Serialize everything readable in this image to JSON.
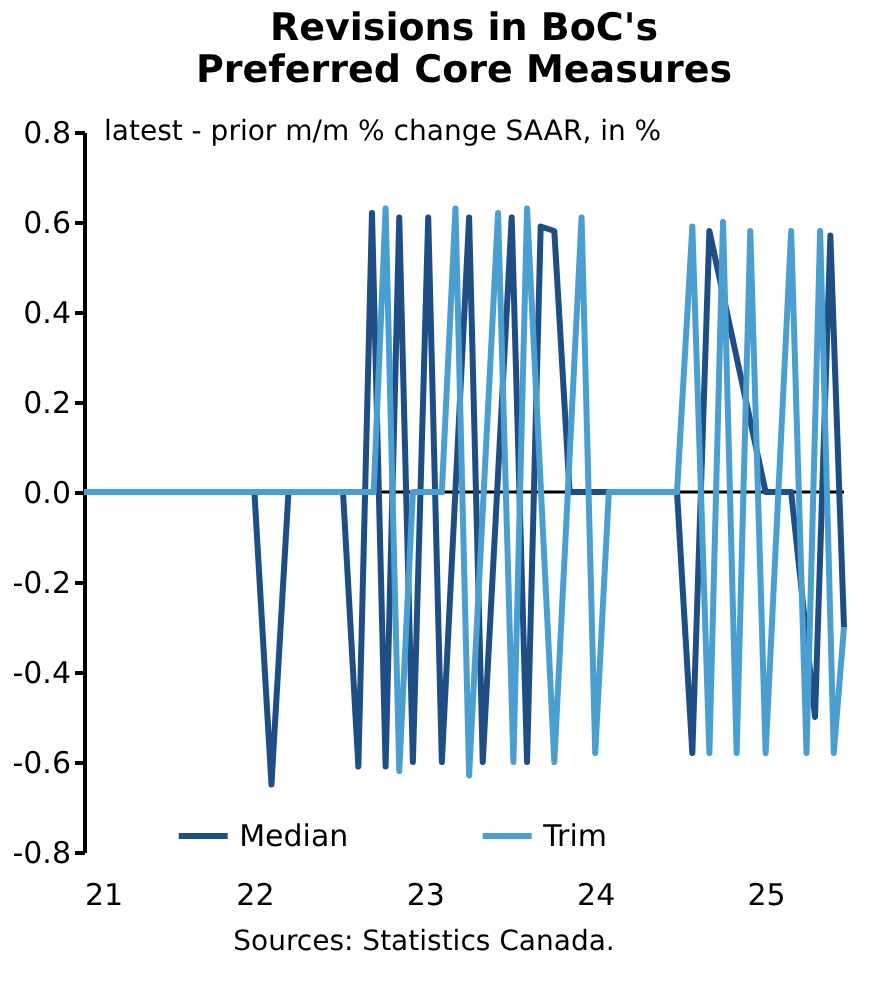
{
  "chart_data": {
    "type": "line",
    "title": "Revisions in BoC's\nPreferred Core Measures",
    "ylabel": "latest - prior m/m % change SAAR, in %",
    "annotations": [
      "Sources: Statistics Canada."
    ],
    "xlim": [
      21,
      25.46
    ],
    "xticks": [
      21,
      22,
      23,
      24,
      25
    ],
    "ylim": [
      -0.8,
      0.8
    ],
    "yticks": [
      {
        "value": -0.8,
        "label": "-0.8"
      },
      {
        "value": -0.6,
        "label": "-0.6"
      },
      {
        "value": -0.4,
        "label": "-0.4"
      },
      {
        "value": -0.2,
        "label": "-0.2"
      },
      {
        "value": 0,
        "label": "0.0"
      },
      {
        "value": 0.2,
        "label": "0.2"
      },
      {
        "value": 0.4,
        "label": "0.4"
      },
      {
        "value": 0.6,
        "label": "0.6"
      },
      {
        "value": 0.8,
        "label": "0.8"
      }
    ],
    "ref_lines": [
      {
        "axis": "y",
        "value": 0,
        "color": "#000000"
      }
    ],
    "grid": false,
    "legend": "bottom",
    "line_style": "solid",
    "marker": "none",
    "series": [
      {
        "name": "Median",
        "color": "#1f4e85",
        "x": [
          21,
          22,
          22.1,
          22.2,
          22.52,
          22.61,
          22.69,
          22.77,
          22.85,
          22.93,
          23.02,
          23.1,
          23.26,
          23.34,
          23.51,
          23.6,
          23.68,
          23.76,
          23.85,
          24.48,
          24.57,
          24.67,
          25.0,
          25.15,
          25.29,
          25.38,
          25.46
        ],
        "values": [
          0,
          0,
          -0.65,
          0,
          0,
          -0.61,
          0.62,
          -0.61,
          0.61,
          -0.6,
          0.61,
          -0.6,
          0.61,
          -0.6,
          0.61,
          -0.6,
          0.59,
          0.58,
          0,
          0,
          -0.58,
          0.58,
          0,
          0,
          -0.5,
          0.57,
          -0.3
        ]
      },
      {
        "name": "Trim",
        "color": "#4a9fd0",
        "x": [
          21,
          22.7,
          22.77,
          22.85,
          22.93,
          23.1,
          23.18,
          23.26,
          23.43,
          23.52,
          23.6,
          23.76,
          23.92,
          24.0,
          24.08,
          24.48,
          24.57,
          24.67,
          24.75,
          24.83,
          24.91,
          25.0,
          25.15,
          25.24,
          25.32,
          25.4,
          25.46
        ],
        "values": [
          0,
          0,
          0.63,
          -0.62,
          0,
          0,
          0.63,
          -0.63,
          0.62,
          -0.6,
          0.63,
          -0.6,
          0.61,
          -0.58,
          0,
          0,
          0.59,
          -0.58,
          0.6,
          -0.58,
          0.58,
          -0.58,
          0.58,
          -0.58,
          0.58,
          -0.58,
          -0.3
        ]
      }
    ]
  }
}
